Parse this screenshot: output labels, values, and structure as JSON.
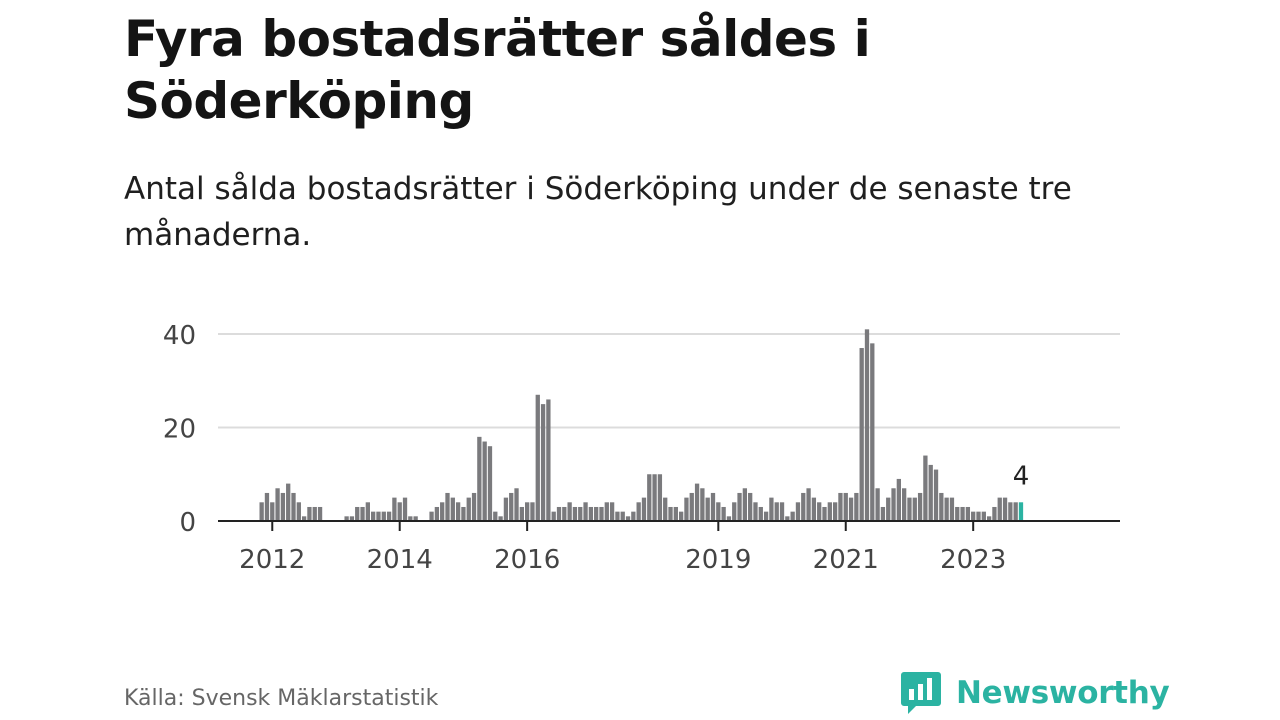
{
  "header": {
    "title": "Fyra bostadsrätter såldes i Söderköping",
    "subtitle": "Antal sålda bostadsrätter i Söderköping under de senaste tre månaderna."
  },
  "footer": {
    "source": "Källa: Svensk Mäklarstatistik",
    "brand": "Newsworthy"
  },
  "colors": {
    "bar": "#7a7a7d",
    "highlight": "#2bb3a2",
    "grid": "#dcdcdc",
    "axis": "#222222",
    "tick_text": "#444444",
    "brand": "#2bb3a2"
  },
  "chart_data": {
    "type": "bar",
    "title": "",
    "xlabel": "",
    "ylabel": "",
    "ylim": [
      0,
      44
    ],
    "y_ticks": [
      0,
      20,
      40
    ],
    "grid": true,
    "x_ticks": [
      "2012",
      "2014",
      "2016",
      "2019",
      "2021",
      "2023"
    ],
    "x_tick_positions": [
      "2012-01",
      "2014-01",
      "2016-01",
      "2019-01",
      "2021-01",
      "2023-01"
    ],
    "start_month": "2011-11",
    "categories_note": "monthly, one value per month from 2011-11 to 2023-10",
    "values": [
      4,
      6,
      4,
      7,
      6,
      8,
      6,
      4,
      1,
      3,
      3,
      3,
      0,
      0,
      0,
      0,
      1,
      1,
      3,
      3,
      4,
      2,
      2,
      2,
      2,
      5,
      4,
      5,
      1,
      1,
      0,
      0,
      2,
      3,
      4,
      6,
      5,
      4,
      3,
      5,
      6,
      18,
      17,
      16,
      2,
      1,
      5,
      6,
      7,
      3,
      4,
      4,
      27,
      25,
      26,
      2,
      3,
      3,
      4,
      3,
      3,
      4,
      3,
      3,
      3,
      4,
      4,
      2,
      2,
      1,
      2,
      4,
      5,
      10,
      10,
      10,
      5,
      3,
      3,
      2,
      5,
      6,
      8,
      7,
      5,
      6,
      4,
      3,
      1,
      4,
      6,
      7,
      6,
      4,
      3,
      2,
      5,
      4,
      4,
      1,
      2,
      4,
      6,
      7,
      5,
      4,
      3,
      4,
      4,
      6,
      6,
      5,
      6,
      37,
      41,
      38,
      7,
      3,
      5,
      7,
      9,
      7,
      5,
      5,
      6,
      14,
      12,
      11,
      6,
      5,
      5,
      3,
      3,
      3,
      2,
      2,
      2,
      1,
      3,
      5,
      5,
      4,
      4,
      4
    ],
    "highlight_last": true,
    "annotation": {
      "text": "4",
      "target": "last"
    }
  }
}
